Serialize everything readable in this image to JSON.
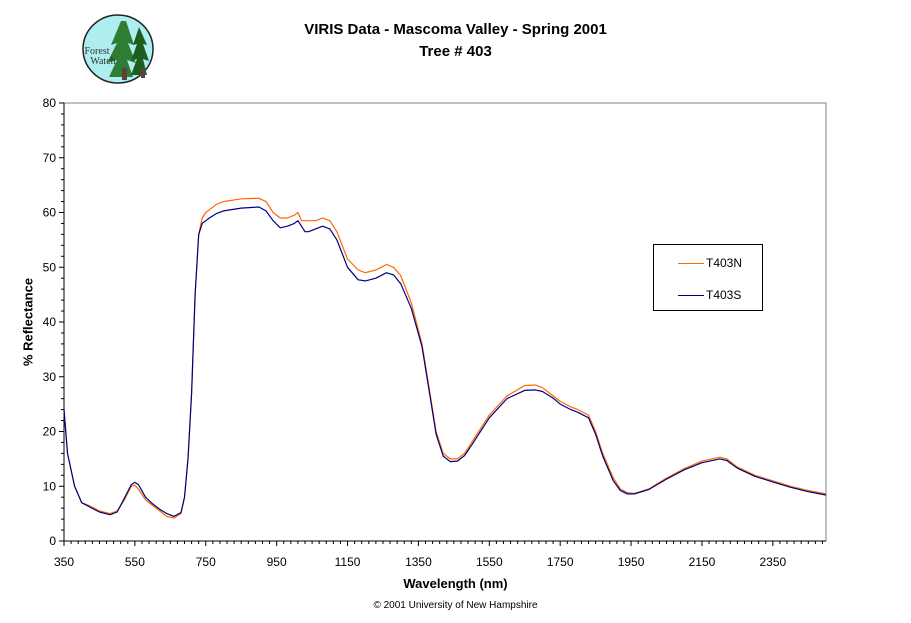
{
  "chart_data": {
    "type": "line",
    "title": "VIRIS Data - Mascoma Valley - Spring 2001",
    "subtitle": "Tree # 403",
    "xlabel": "Wavelength (nm)",
    "ylabel": "% Reflectance",
    "xlim": [
      350,
      2500
    ],
    "ylim": [
      0,
      80
    ],
    "x_ticks": [
      "350",
      "550",
      "750",
      "950",
      "1150",
      "1350",
      "1550",
      "1750",
      "1950",
      "2150",
      "2350"
    ],
    "y_ticks": [
      "0",
      "10",
      "20",
      "30",
      "40",
      "50",
      "60",
      "70",
      "80"
    ],
    "grid": false,
    "legend_position": "right",
    "x": [
      350,
      360,
      380,
      400,
      420,
      450,
      480,
      500,
      520,
      540,
      550,
      560,
      580,
      600,
      620,
      640,
      660,
      680,
      690,
      700,
      710,
      720,
      730,
      740,
      750,
      760,
      780,
      800,
      850,
      900,
      920,
      940,
      960,
      980,
      1000,
      1010,
      1020,
      1030,
      1040,
      1060,
      1080,
      1100,
      1120,
      1150,
      1180,
      1200,
      1230,
      1260,
      1280,
      1300,
      1330,
      1360,
      1380,
      1400,
      1420,
      1440,
      1460,
      1480,
      1500,
      1550,
      1600,
      1650,
      1680,
      1700,
      1730,
      1750,
      1780,
      1800,
      1830,
      1850,
      1870,
      1900,
      1920,
      1940,
      1960,
      2000,
      2050,
      2100,
      2150,
      2200,
      2220,
      2250,
      2300,
      2350,
      2400,
      2450,
      2500
    ],
    "series": [
      {
        "name": "T403N",
        "color": "#ff6600",
        "values": [
          24,
          16,
          10,
          7,
          6.5,
          5.5,
          5,
          5.5,
          7.5,
          10,
          10.2,
          9.5,
          7.5,
          6.5,
          5.5,
          4.5,
          4.2,
          5,
          8,
          15,
          27,
          45,
          56,
          59,
          60,
          60.5,
          61.5,
          62,
          62.5,
          62.6,
          62,
          60,
          59,
          59,
          59.5,
          60,
          58.5,
          58.5,
          58.5,
          58.5,
          59,
          58.5,
          56.5,
          51.5,
          49.5,
          49,
          49.5,
          50.5,
          50,
          48.5,
          43.5,
          36,
          28,
          20,
          16,
          15,
          15,
          16,
          18,
          23,
          26.5,
          28.4,
          28.5,
          28,
          26.5,
          25.5,
          24.5,
          24,
          23,
          20,
          16,
          11.5,
          9.5,
          8.8,
          8.7,
          9.5,
          11.5,
          13.2,
          14.6,
          15.3,
          15,
          13.5,
          12,
          11,
          10,
          9.2,
          8.6
        ]
      },
      {
        "name": "T403S",
        "color": "#000080",
        "values": [
          24,
          16,
          10,
          7,
          6.3,
          5.3,
          4.8,
          5.3,
          7.8,
          10.3,
          10.7,
          10.3,
          8,
          6.8,
          5.8,
          5,
          4.5,
          5.2,
          8,
          15,
          27,
          45,
          56,
          58,
          58.5,
          59,
          59.8,
          60.3,
          60.8,
          61,
          60.3,
          58.5,
          57.2,
          57.5,
          58,
          58.5,
          57.5,
          56.5,
          56.5,
          57,
          57.5,
          57,
          55,
          50,
          47.7,
          47.5,
          48,
          49,
          48.6,
          47,
          42.5,
          35.5,
          27.5,
          19.5,
          15.5,
          14.5,
          14.6,
          15.6,
          17.5,
          22.5,
          26,
          27.5,
          27.6,
          27.3,
          26.1,
          25,
          24,
          23.5,
          22.5,
          19.5,
          15.5,
          11,
          9.2,
          8.6,
          8.6,
          9.4,
          11.3,
          13,
          14.3,
          15,
          14.7,
          13.3,
          11.8,
          10.8,
          9.8,
          9,
          8.4
        ]
      }
    ]
  },
  "logo": {
    "text_line1": "Forest",
    "text_line2": "Watch"
  },
  "copyright": "© 2001 University of New Hampshire"
}
